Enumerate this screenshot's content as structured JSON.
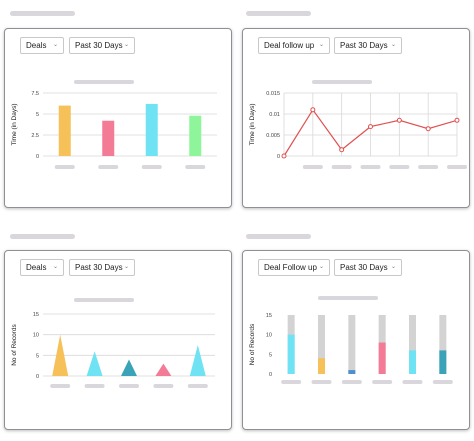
{
  "colors": {
    "yellow": "#f5c158",
    "pink": "#f37b96",
    "cyan": "#6fe3f3",
    "green": "#8ff59a",
    "red": "#e05050",
    "teal": "#3aa3b8",
    "blue": "#4f8fd0",
    "gray": "#d3d3d3",
    "placeholder": "#d9d6dc",
    "grid": "#d8d8d8"
  },
  "cards": [
    {
      "filters": {
        "primary": "Deals",
        "period": "Past 30 Days"
      },
      "chart_data": {
        "type": "bar",
        "title": "",
        "xlabel": "",
        "ylabel": "Time (in Days)",
        "ylim": [
          0,
          7.5
        ],
        "yticks": [
          "0",
          "2.5",
          "5",
          "7.5"
        ],
        "grid": true,
        "series": [
          {
            "values": [
              6.0,
              4.2,
              6.2,
              4.8
            ]
          }
        ],
        "bar_colors": [
          "yellow",
          "pink",
          "cyan",
          "green"
        ]
      }
    },
    {
      "filters": {
        "primary": "Deal follow up",
        "period": "Past 30 Days"
      },
      "chart_data": {
        "type": "line",
        "title": "",
        "xlabel": "",
        "ylabel": "Time (in Days)",
        "ylim": [
          0,
          0.015
        ],
        "yticks": [
          "0",
          "0.005",
          "0.01",
          "0.015"
        ],
        "grid": true,
        "series": [
          {
            "values": [
              0,
              0.011,
              0.0015,
              0.007,
              0.0085,
              0.0065,
              0.0085
            ]
          }
        ],
        "line_color": "red"
      }
    },
    {
      "filters": {
        "primary": "Deals",
        "period": "Past 30 Days"
      },
      "chart_data": {
        "type": "bar",
        "title": "",
        "xlabel": "",
        "ylabel": "No of Records",
        "ylim": [
          0,
          15
        ],
        "yticks": [
          "0",
          "5",
          "10",
          "15"
        ],
        "grid": true,
        "series": [
          {
            "values": [
              10,
              6,
              4,
              3,
              7.5
            ]
          }
        ],
        "bar_colors": [
          "yellow",
          "cyan",
          "teal",
          "pink",
          "cyan"
        ]
      }
    },
    {
      "filters": {
        "primary": "Deal Follow up",
        "period": "Past 30 Days"
      },
      "chart_data": {
        "type": "bar",
        "title": "",
        "xlabel": "",
        "ylabel": "No of Records",
        "ylim": [
          0,
          15
        ],
        "yticks": [
          "0",
          "5",
          "10",
          "15"
        ],
        "grid": false,
        "series": [
          {
            "values": [
              10,
              4,
              1,
              8,
              6,
              6
            ]
          }
        ],
        "totals": [
          15,
          15,
          15,
          15,
          15,
          15
        ],
        "bar_colors": [
          "cyan",
          "yellow",
          "blue",
          "pink",
          "cyan",
          "teal"
        ]
      }
    }
  ]
}
